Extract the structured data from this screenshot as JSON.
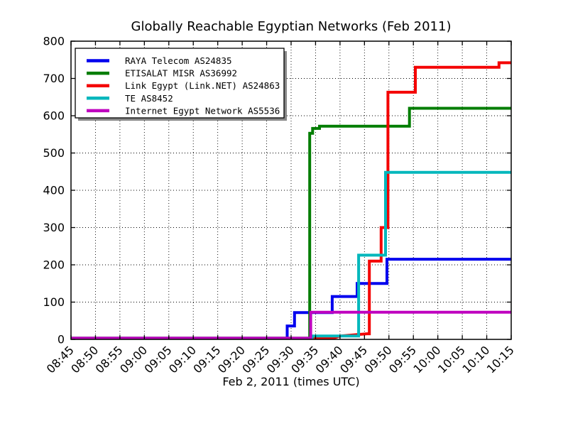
{
  "chart_data": {
    "type": "line",
    "title": "Globally Reachable Egyptian Networks (Feb 2011)",
    "xlabel": "Feb 2, 2011 (times UTC)",
    "x_axis": {
      "unit": "minutes after 08:45 UTC",
      "range_minutes": [
        0,
        90
      ],
      "tick_interval_minutes": 5,
      "tick_labels": [
        "08:45",
        "08:50",
        "08:55",
        "09:00",
        "09:05",
        "09:10",
        "09:15",
        "09:20",
        "09:25",
        "09:30",
        "09:35",
        "09:40",
        "09:45",
        "09:50",
        "09:55",
        "10:00",
        "10:05",
        "10:10",
        "10:15"
      ]
    },
    "y_axis": {
      "ylim": [
        0,
        800
      ],
      "ticks": [
        0,
        100,
        200,
        300,
        400,
        500,
        600,
        700,
        800
      ]
    },
    "grid": "dotted",
    "legend": {
      "position": "upper-left",
      "shadow": true
    },
    "series": [
      {
        "name": "RAYA Telecom AS24835",
        "color": "#0000ee",
        "points": [
          [
            0,
            3
          ],
          [
            44.2,
            3
          ],
          [
            44.2,
            36
          ],
          [
            45.7,
            36
          ],
          [
            45.7,
            72
          ],
          [
            53.4,
            72
          ],
          [
            53.4,
            115
          ],
          [
            58.5,
            115
          ],
          [
            58.5,
            150
          ],
          [
            64.6,
            150
          ],
          [
            64.6,
            215
          ],
          [
            90,
            215
          ]
        ]
      },
      {
        "name": "ETISALAT MISR AS36992",
        "color": "#007d00",
        "points": [
          [
            0,
            3
          ],
          [
            48.8,
            3
          ],
          [
            48.8,
            553
          ],
          [
            49.4,
            553
          ],
          [
            49.4,
            566
          ],
          [
            50.8,
            566
          ],
          [
            50.8,
            572
          ],
          [
            69.2,
            572
          ],
          [
            69.2,
            620
          ],
          [
            90,
            620
          ]
        ]
      },
      {
        "name": "Link Egypt (Link.NET) AS24863",
        "color": "#f40000",
        "points": [
          [
            0,
            3
          ],
          [
            53.5,
            3
          ],
          [
            55,
            9
          ],
          [
            60.5,
            15
          ],
          [
            61,
            15
          ],
          [
            61,
            210
          ],
          [
            63.4,
            210
          ],
          [
            63.4,
            300
          ],
          [
            64.8,
            300
          ],
          [
            64.8,
            663
          ],
          [
            70.4,
            663
          ],
          [
            70.4,
            730
          ],
          [
            87.5,
            730
          ],
          [
            87.5,
            742
          ],
          [
            90,
            742
          ]
        ]
      },
      {
        "name": "TE AS8452",
        "color": "#00b7bc",
        "points": [
          [
            0,
            3
          ],
          [
            49.3,
            3
          ],
          [
            49.3,
            9
          ],
          [
            58.8,
            9
          ],
          [
            58.8,
            226
          ],
          [
            64.3,
            226
          ],
          [
            64.3,
            448
          ],
          [
            90,
            448
          ]
        ]
      },
      {
        "name": "Internet Egypt Network AS5536",
        "color": "#bf00bf",
        "points": [
          [
            0,
            3
          ],
          [
            49,
            3
          ],
          [
            49,
            73
          ],
          [
            90,
            73
          ]
        ]
      }
    ]
  }
}
